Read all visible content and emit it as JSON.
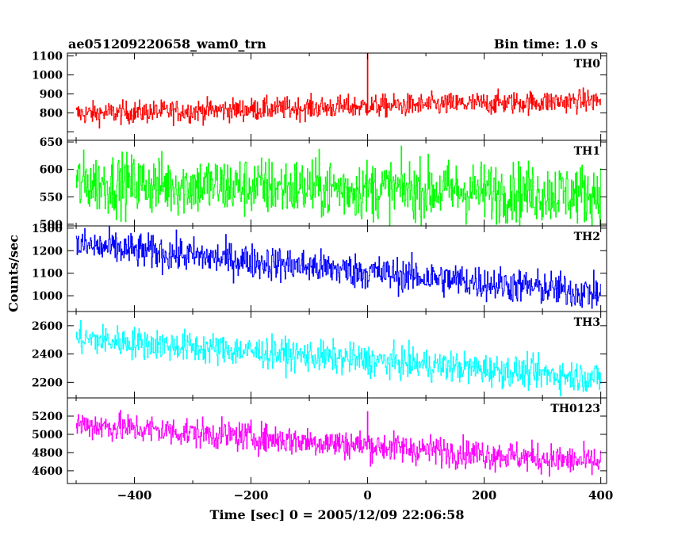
{
  "header": {
    "title": "ae051209220658_wam0_trn",
    "bin_time": "Bin time: 1.0 s"
  },
  "chart_data": {
    "type": "line",
    "xlabel": "Time [sec] 0 = 2005/12/09 22:06:58",
    "ylabel": "Counts/sec",
    "xlim": [
      -515,
      410
    ],
    "x_ticks": [
      -400,
      -200,
      0,
      200,
      400
    ],
    "x_range": [
      -500,
      400
    ],
    "bin_seconds": 1,
    "grid": false,
    "panels": [
      {
        "name": "TH0",
        "color": "#ff0000",
        "ylim": [
          655,
          1115
        ],
        "y_ticks": [
          700,
          800,
          900,
          1000,
          1100
        ],
        "y_tick_labels": [
          "800",
          "900",
          "1000",
          "1100"
        ],
        "trend_start": 795,
        "trend_end": 865,
        "noise_amplitude": 35,
        "spikes": [
          {
            "x": 0,
            "y": 1115
          }
        ]
      },
      {
        "name": "TH1",
        "color": "#00ff00",
        "ylim": [
          497,
          653
        ],
        "y_ticks": [
          500,
          550,
          600,
          650
        ],
        "y_tick_labels": [
          "500",
          "550",
          "600",
          "650"
        ],
        "trend_start": 575,
        "trend_end": 555,
        "noise_amplitude": 32,
        "spikes": []
      },
      {
        "name": "TH2",
        "color": "#0000ff",
        "ylim": [
          930,
          1310
        ],
        "y_ticks": [
          1000,
          1100,
          1200,
          1300
        ],
        "y_tick_labels": [
          "1000",
          "1100",
          "1200",
          "1300"
        ],
        "trend_start": 1225,
        "trend_end": 1010,
        "noise_amplitude": 45,
        "spikes": []
      },
      {
        "name": "TH3",
        "color": "#00ffff",
        "ylim": [
          2090,
          2700
        ],
        "y_ticks": [
          2200,
          2400,
          2600
        ],
        "y_tick_labels": [
          "2200",
          "2400",
          "2600"
        ],
        "trend_start": 2510,
        "trend_end": 2230,
        "noise_amplitude": 65,
        "spikes": []
      },
      {
        "name": "TH0123",
        "color": "#ff00ff",
        "ylim": [
          4460,
          5400
        ],
        "y_ticks": [
          4600,
          4800,
          5000,
          5200
        ],
        "y_tick_labels": [
          "4600",
          "4800",
          "5000",
          "5200"
        ],
        "trend_start": 5110,
        "trend_end": 4690,
        "noise_amplitude": 95,
        "spikes": [
          {
            "x": 0,
            "y": 5250
          }
        ]
      }
    ]
  }
}
